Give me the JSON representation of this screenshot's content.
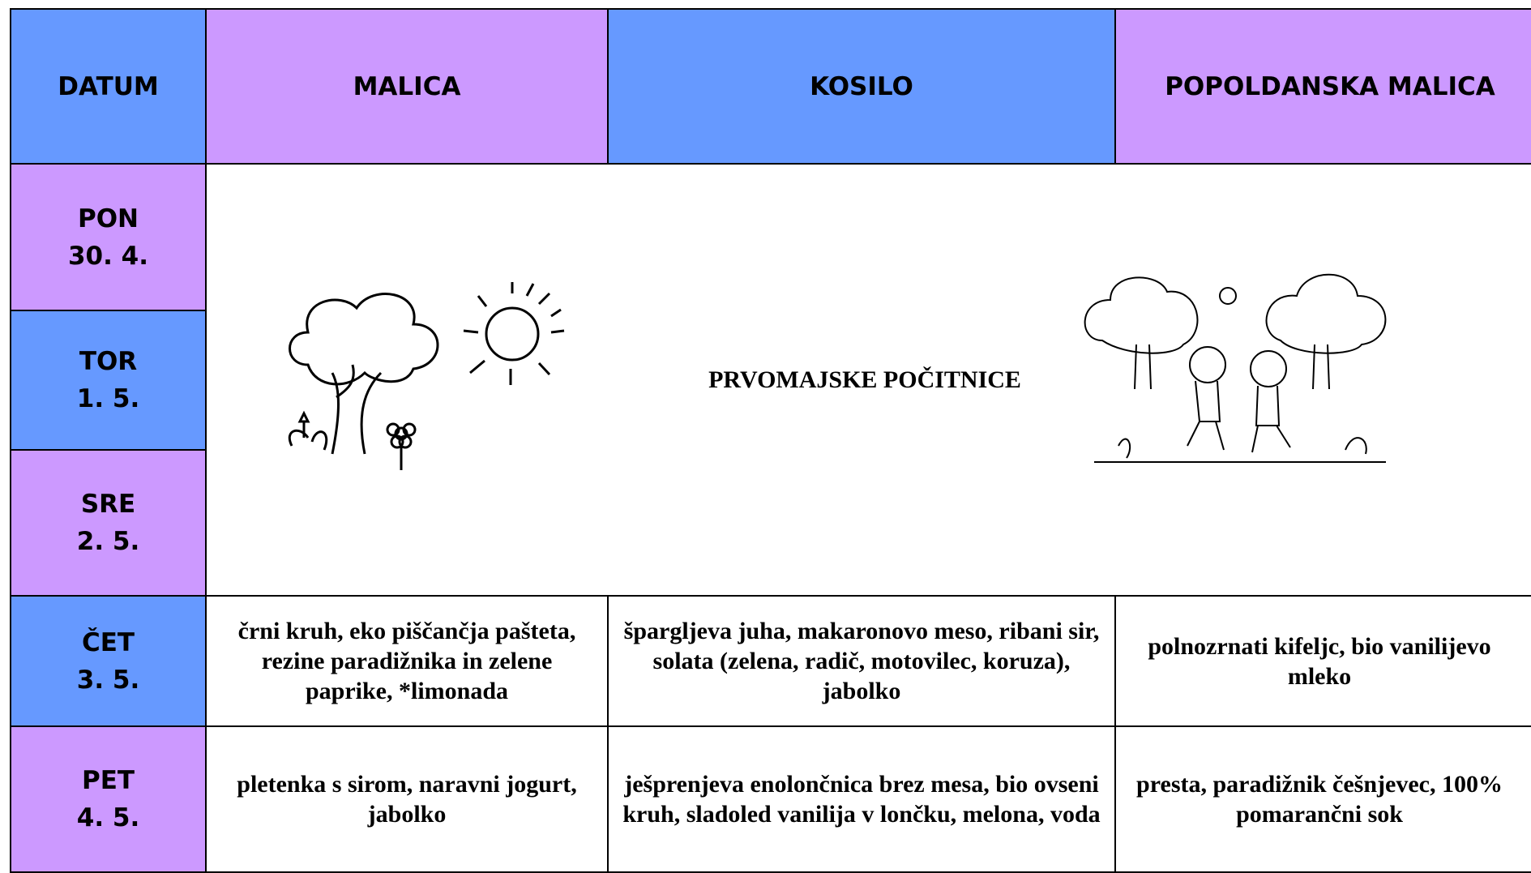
{
  "header": {
    "columns": [
      "DATUM",
      "MALICA",
      "KOSILO",
      "POPOLDANSKA MALICA"
    ]
  },
  "days": [
    {
      "name": "PON",
      "date": "30. 4."
    },
    {
      "name": "TOR",
      "date": "1. 5."
    },
    {
      "name": "SRE",
      "date": "2. 5."
    },
    {
      "name": "ČET",
      "date": "3. 5."
    },
    {
      "name": "PET",
      "date": "4. 5."
    }
  ],
  "holiday": {
    "label": "PRVOMAJSKE POČITNICE"
  },
  "meals": [
    {
      "malica": "črni kruh, eko piščančja pašteta, rezine paradižnika in zelene paprike, *limonada",
      "kosilo": "špargljeva juha, makaronovo meso, ribani sir, solata (zelena, radič, motovilec, koruza), jabolko",
      "popoldanska_malica": "polnozrnati kifeljc, bio vanilijevo mleko"
    },
    {
      "malica": "pletenka s sirom, naravni jogurt, jabolko",
      "kosilo": "ješprenjeva enolončnica brez mesa, bio ovseni kruh, sladoled vanilija v lončku, melona, voda",
      "popoldanska_malica": "presta, paradižnik češnjevec, 100% pomarančni sok"
    }
  ]
}
